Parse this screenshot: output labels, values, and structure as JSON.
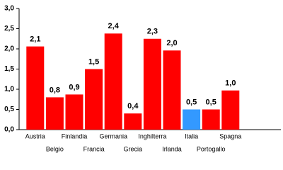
{
  "chart_data": {
    "type": "bar",
    "categories": [
      "Austria",
      "Belgio",
      "Finlandia",
      "Francia",
      "Germania",
      "Grecia",
      "Inghilterra",
      "Irlanda",
      "Italia",
      "Portogallo",
      "Spagna"
    ],
    "values": [
      2.06,
      0.8,
      0.87,
      1.5,
      2.38,
      0.4,
      2.25,
      1.96,
      0.5,
      0.5,
      0.97
    ],
    "value_labels": [
      "2,1",
      "0,8",
      "0,9",
      "1,5",
      "2,4",
      "0,4",
      "2,3",
      "2,0",
      "0,5",
      "0,5",
      "1,0"
    ],
    "colors": [
      "#ff0000",
      "#ff0000",
      "#ff0000",
      "#ff0000",
      "#ff0000",
      "#ff0000",
      "#ff0000",
      "#ff0000",
      "#3399ff",
      "#ff0000",
      "#ff0000"
    ],
    "ylim": [
      0,
      3
    ],
    "yticks": [
      {
        "value": 0,
        "label": "0,0"
      },
      {
        "value": 0.5,
        "label": "0,5"
      },
      {
        "value": 1,
        "label": "1,0"
      },
      {
        "value": 1.5,
        "label": "1,5"
      },
      {
        "value": 2,
        "label": "2,0"
      },
      {
        "value": 2.5,
        "label": "2,5"
      },
      {
        "value": 3,
        "label": "3,0"
      }
    ]
  }
}
